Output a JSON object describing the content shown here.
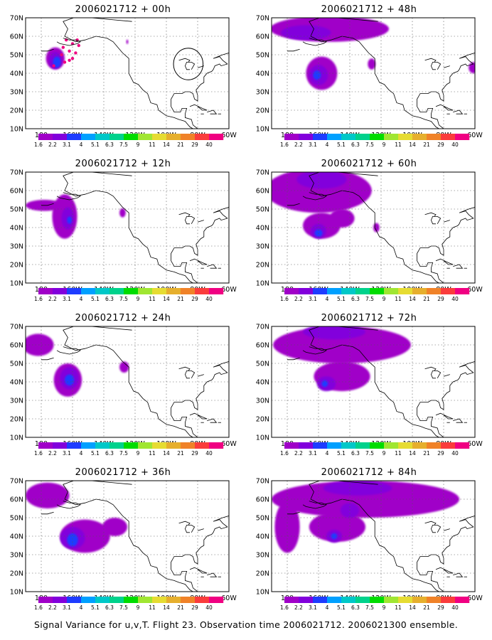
{
  "figure": {
    "caption": "Signal Variance for u,v,T. Flight 23. Observation time 2006021712. 2006021300 ensemble."
  },
  "map": {
    "lat_labels": [
      "70N",
      "60N",
      "50N",
      "40N",
      "30N",
      "20N",
      "10N"
    ],
    "lon_labels": [
      "180",
      "160W",
      "140W",
      "120W",
      "100W",
      "80W",
      "60W"
    ],
    "lon_range": [
      -190,
      -60
    ],
    "lat_range": [
      10,
      70
    ]
  },
  "legend": {
    "levels": [
      "1.6",
      "2.2",
      "3.1",
      "4",
      "5.1",
      "6.3",
      "7.5",
      "9",
      "11",
      "14",
      "21",
      "29",
      "40"
    ],
    "colors": [
      "#a000c8",
      "#8200dc",
      "#1e3cff",
      "#00a0ff",
      "#00c8c8",
      "#00d28c",
      "#00dc00",
      "#a0e632",
      "#e6dc32",
      "#e6af2d",
      "#f08228",
      "#fa3c3c",
      "#f00082"
    ]
  },
  "panels": [
    {
      "title": "2006021712 + 00h",
      "blobs": [
        {
          "lon": -171,
          "lat": 48,
          "level": 0,
          "rx": 6,
          "ry": 6
        },
        {
          "lon": -171,
          "lat": 47,
          "level": 1,
          "rx": 4,
          "ry": 4.5
        },
        {
          "lon": -170,
          "lat": 46,
          "level": 2,
          "rx": 2.5,
          "ry": 3
        },
        {
          "lon": -125,
          "lat": 57,
          "level": 0,
          "rx": 0.7,
          "ry": 1.2
        }
      ],
      "dots": [
        {
          "lon": -164,
          "lat": 58
        },
        {
          "lon": -166,
          "lat": 54
        },
        {
          "lon": -167,
          "lat": 50
        },
        {
          "lon": -165,
          "lat": 46
        },
        {
          "lon": -162,
          "lat": 52
        },
        {
          "lon": -160,
          "lat": 56
        },
        {
          "lon": -162,
          "lat": 47
        },
        {
          "lon": -158,
          "lat": 51
        },
        {
          "lon": -156,
          "lat": 55
        },
        {
          "lon": -157,
          "lat": 58
        },
        {
          "lon": -160,
          "lat": 48
        },
        {
          "lon": -172,
          "lat": 44
        }
      ],
      "circle": {
        "lon": -86,
        "lat": 45,
        "r": 9
      }
    },
    {
      "title": "2006021712 + 12h",
      "blobs": [
        {
          "lon": -165,
          "lat": 46,
          "level": 0,
          "rx": 8,
          "ry": 12
        },
        {
          "lon": -178,
          "lat": 52,
          "level": 0,
          "rx": 12,
          "ry": 3
        },
        {
          "lon": -163,
          "lat": 45,
          "level": 1,
          "rx": 4,
          "ry": 6
        },
        {
          "lon": -162,
          "lat": 44,
          "level": 2,
          "rx": 1.5,
          "ry": 2
        },
        {
          "lon": -128,
          "lat": 48,
          "level": 0,
          "rx": 2,
          "ry": 2.5
        }
      ],
      "dots": [],
      "circle": null
    },
    {
      "title": "2006021712 + 24h",
      "blobs": [
        {
          "lon": -182,
          "lat": 60,
          "level": 0,
          "rx": 10,
          "ry": 6
        },
        {
          "lon": -163,
          "lat": 41,
          "level": 0,
          "rx": 9,
          "ry": 9
        },
        {
          "lon": -162,
          "lat": 42,
          "level": 1,
          "rx": 6,
          "ry": 6
        },
        {
          "lon": -162,
          "lat": 41,
          "level": 2,
          "rx": 3,
          "ry": 3
        },
        {
          "lon": -127,
          "lat": 48,
          "level": 0,
          "rx": 3,
          "ry": 3
        }
      ],
      "dots": [],
      "circle": null
    },
    {
      "title": "2006021712 + 36h",
      "blobs": [
        {
          "lon": -176,
          "lat": 62,
          "level": 0,
          "rx": 14,
          "ry": 7
        },
        {
          "lon": -152,
          "lat": 40,
          "level": 0,
          "rx": 16,
          "ry": 9
        },
        {
          "lon": -133,
          "lat": 45,
          "level": 0,
          "rx": 8,
          "ry": 5
        },
        {
          "lon": -160,
          "lat": 39,
          "level": 1,
          "rx": 8,
          "ry": 6
        },
        {
          "lon": -160,
          "lat": 38,
          "level": 2,
          "rx": 3.5,
          "ry": 3.5
        }
      ],
      "dots": [],
      "circle": null
    },
    {
      "title": "2006021712 + 48h",
      "blobs": [
        {
          "lon": -153,
          "lat": 64,
          "level": 0,
          "rx": 38,
          "ry": 7
        },
        {
          "lon": -168,
          "lat": 62,
          "level": 1,
          "rx": 16,
          "ry": 4
        },
        {
          "lon": -158,
          "lat": 40,
          "level": 0,
          "rx": 10,
          "ry": 9
        },
        {
          "lon": -160,
          "lat": 39,
          "level": 1,
          "rx": 6,
          "ry": 5.5
        },
        {
          "lon": -161,
          "lat": 39,
          "level": 2,
          "rx": 2.5,
          "ry": 2.5
        },
        {
          "lon": -126,
          "lat": 45,
          "level": 0,
          "rx": 2.5,
          "ry": 3
        },
        {
          "lon": -61,
          "lat": 43,
          "level": 0,
          "rx": 3,
          "ry": 3
        }
      ],
      "dots": [],
      "circle": null
    },
    {
      "title": "2006021712 + 60h",
      "blobs": [
        {
          "lon": -160,
          "lat": 60,
          "level": 0,
          "rx": 34,
          "ry": 12
        },
        {
          "lon": -158,
          "lat": 66,
          "level": 1,
          "rx": 16,
          "ry": 5
        },
        {
          "lon": -158,
          "lat": 41,
          "level": 0,
          "rx": 12,
          "ry": 7
        },
        {
          "lon": -145,
          "lat": 45,
          "level": 0,
          "rx": 8,
          "ry": 5
        },
        {
          "lon": -160,
          "lat": 38,
          "level": 1,
          "rx": 5,
          "ry": 4
        },
        {
          "lon": -160,
          "lat": 37,
          "level": 2,
          "rx": 2.5,
          "ry": 2
        },
        {
          "lon": -123,
          "lat": 40,
          "level": 0,
          "rx": 2,
          "ry": 2.5
        }
      ],
      "dots": [],
      "circle": null
    },
    {
      "title": "2006021712 + 72h",
      "blobs": [
        {
          "lon": -145,
          "lat": 60,
          "level": 0,
          "rx": 44,
          "ry": 10
        },
        {
          "lon": -150,
          "lat": 67,
          "level": 1,
          "rx": 20,
          "ry": 4
        },
        {
          "lon": -145,
          "lat": 43,
          "level": 0,
          "rx": 18,
          "ry": 8
        },
        {
          "lon": -155,
          "lat": 39,
          "level": 1,
          "rx": 6,
          "ry": 4
        },
        {
          "lon": -156,
          "lat": 39,
          "level": 2,
          "rx": 2,
          "ry": 1.8
        }
      ],
      "dots": [],
      "circle": null
    },
    {
      "title": "2006021712 + 84h",
      "blobs": [
        {
          "lon": -130,
          "lat": 60,
          "level": 0,
          "rx": 60,
          "ry": 10
        },
        {
          "lon": -180,
          "lat": 45,
          "level": 0,
          "rx": 8,
          "ry": 14
        },
        {
          "lon": -148,
          "lat": 45,
          "level": 0,
          "rx": 18,
          "ry": 8
        },
        {
          "lon": -135,
          "lat": 66,
          "level": 1,
          "rx": 22,
          "ry": 4
        },
        {
          "lon": -140,
          "lat": 54,
          "level": 1,
          "rx": 6,
          "ry": 4
        },
        {
          "lon": -150,
          "lat": 40,
          "level": 1,
          "rx": 5,
          "ry": 3.5
        },
        {
          "lon": -150,
          "lat": 40,
          "level": 2,
          "rx": 2,
          "ry": 1.6
        }
      ],
      "dots": [],
      "circle": null
    }
  ]
}
